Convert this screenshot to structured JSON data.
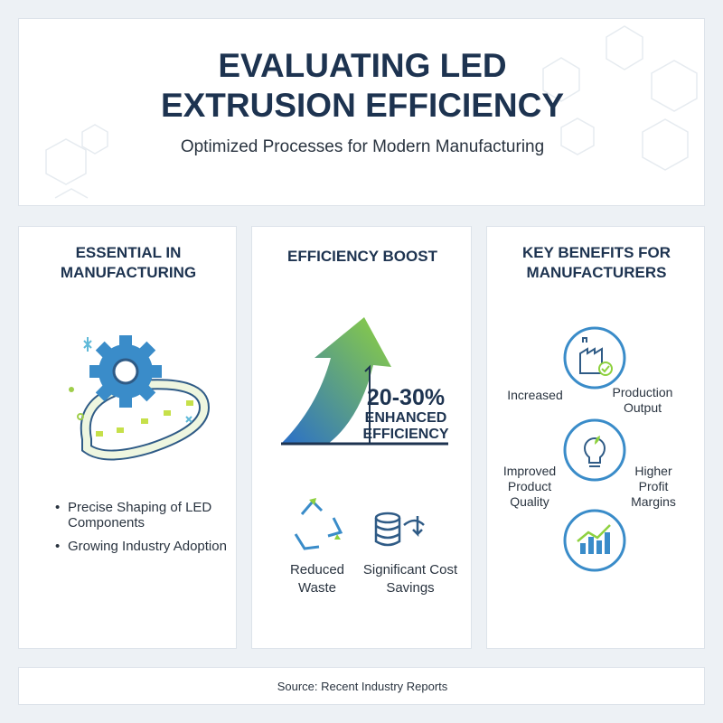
{
  "header": {
    "title_lines": [
      "EVALUATING LED",
      "EXTRUSION EFFICIENCY"
    ],
    "subtitle": "Optimized Processes for Modern Manufacturing"
  },
  "panels": [
    {
      "title": "ESSENTIAL IN MANUFACTURING",
      "bullets": [
        "Precise Shaping of LED Components",
        "Growing Industry Adoption"
      ]
    },
    {
      "title": "EFFICIENCY BOOST",
      "stat": "20-30%",
      "stat_label": "ENHANCED EFFICIENCY",
      "items": [
        "Reduced Waste",
        "Significant Cost Savings"
      ]
    },
    {
      "title": "KEY BENEFITS FOR MANUFACTURERS",
      "benefits": [
        "Increased",
        "Production Output",
        "Improved Product Quality",
        "Higher Profit Margins"
      ]
    }
  ],
  "footer": {
    "source": "Source: Recent Industry Reports"
  }
}
